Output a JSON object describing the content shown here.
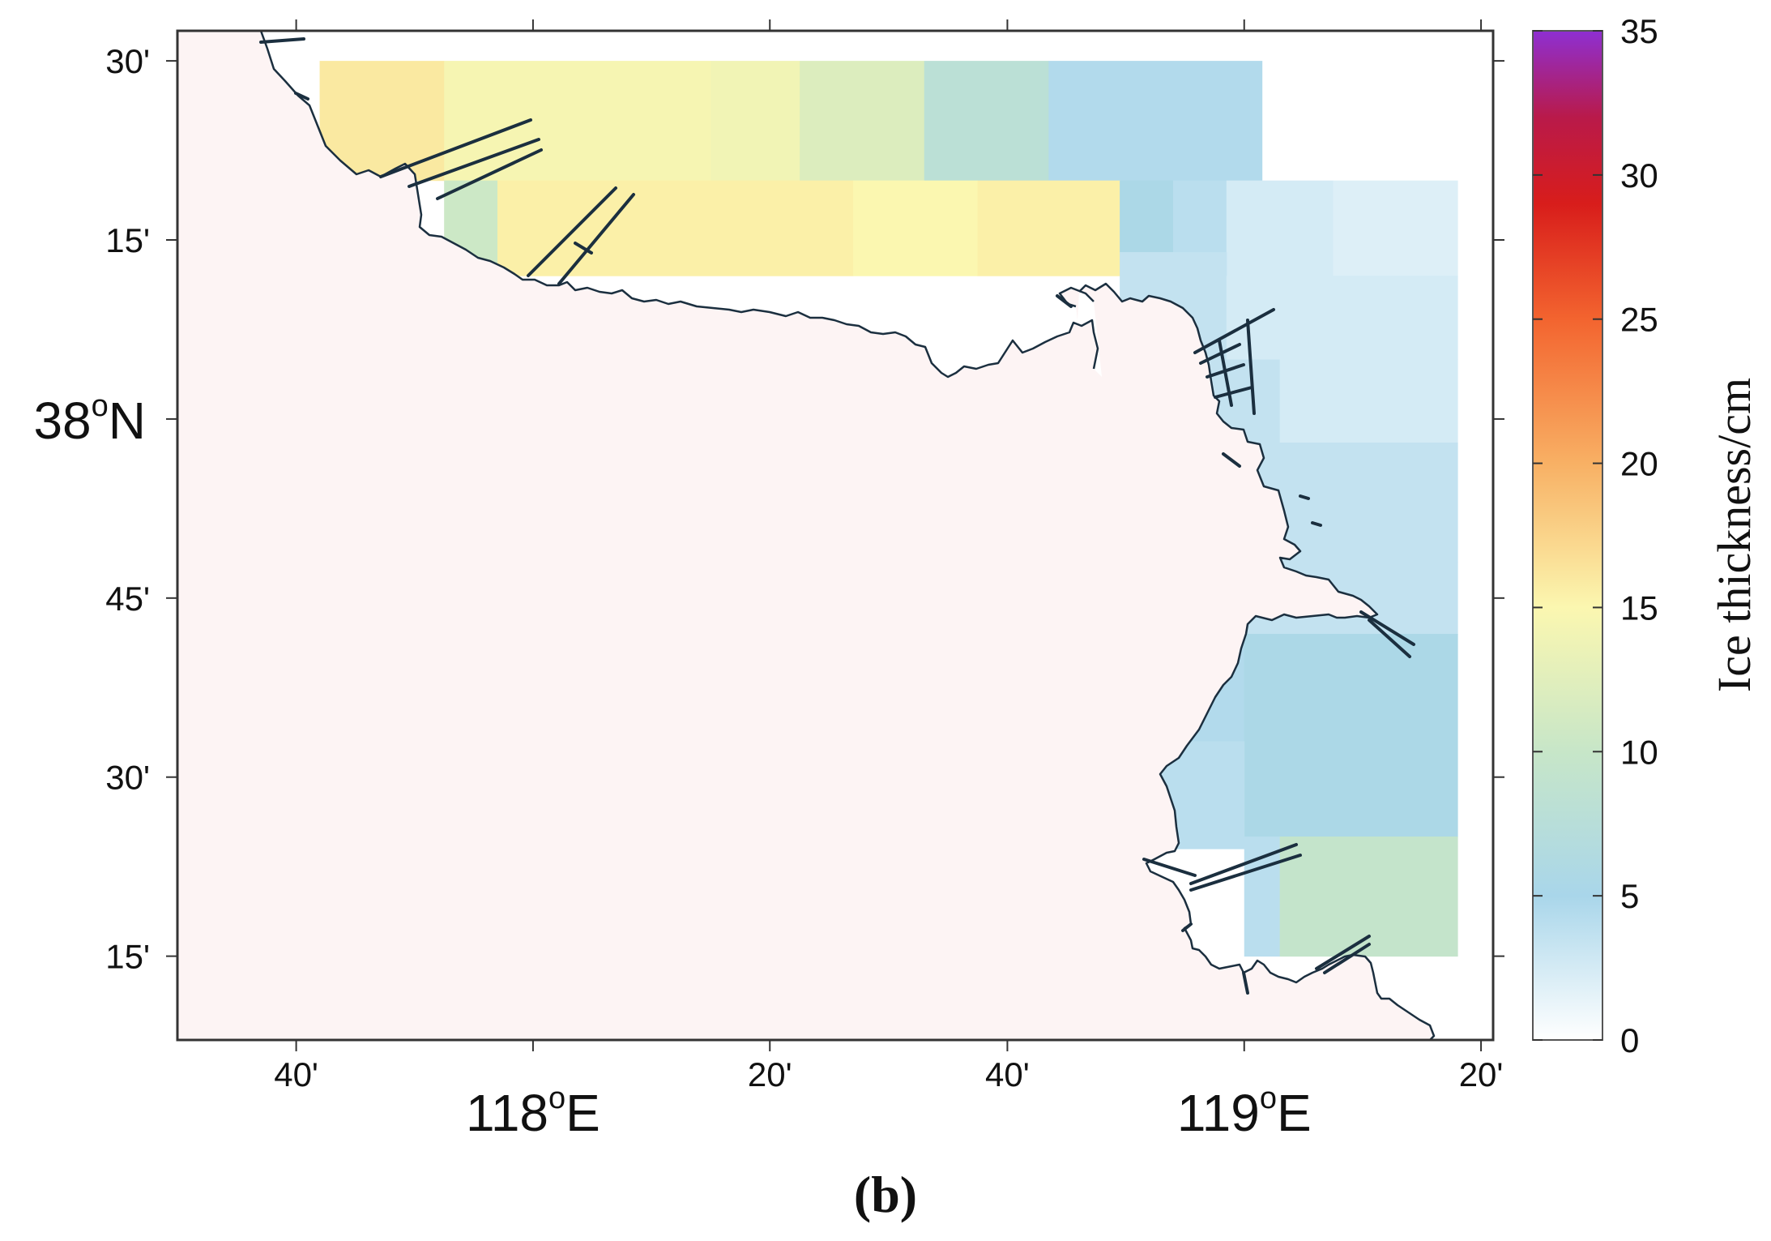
{
  "map": {
    "colors": {
      "land": "#fdf4f4",
      "coast": "#1b2f3f",
      "frame": "#333333"
    },
    "ice_cells_note_units": "cm",
    "ice_cells": [
      {
        "lon0": 117.7,
        "lon1": 117.875,
        "lat0": 38.333,
        "lat1": 38.5,
        "thickness": 16
      },
      {
        "lon0": 117.875,
        "lon1": 118.25,
        "lat0": 38.333,
        "lat1": 38.5,
        "thickness": 14.5
      },
      {
        "lon0": 118.25,
        "lon1": 118.375,
        "lat0": 38.333,
        "lat1": 38.5,
        "thickness": 14
      },
      {
        "lon0": 118.375,
        "lon1": 118.55,
        "lat0": 38.333,
        "lat1": 38.5,
        "thickness": 12
      },
      {
        "lon0": 118.55,
        "lon1": 118.725,
        "lat0": 38.333,
        "lat1": 38.5,
        "thickness": 8
      },
      {
        "lon0": 118.725,
        "lon1": 119.025,
        "lat0": 38.333,
        "lat1": 38.5,
        "thickness": 4.5
      },
      {
        "lon0": 117.875,
        "lon1": 117.95,
        "lat0": 38.2,
        "lat1": 38.333,
        "thickness": 10.5
      },
      {
        "lon0": 117.95,
        "lon1": 118.45,
        "lat0": 38.2,
        "lat1": 38.333,
        "thickness": 15.5
      },
      {
        "lon0": 118.45,
        "lon1": 118.625,
        "lat0": 38.2,
        "lat1": 38.333,
        "thickness": 15
      },
      {
        "lon0": 118.625,
        "lon1": 118.825,
        "lat0": 38.2,
        "lat1": 38.333,
        "thickness": 15.5
      },
      {
        "lon0": 118.825,
        "lon1": 118.9,
        "lat0": 38.233,
        "lat1": 38.333,
        "thickness": 5.5
      },
      {
        "lon0": 118.9,
        "lon1": 118.975,
        "lat0": 38.233,
        "lat1": 38.333,
        "thickness": 4
      },
      {
        "lon0": 118.975,
        "lon1": 119.125,
        "lat0": 38.2,
        "lat1": 38.333,
        "thickness": 2.5
      },
      {
        "lon0": 119.125,
        "lon1": 119.3,
        "lat0": 38.2,
        "lat1": 38.333,
        "thickness": 2
      },
      {
        "lon0": 118.825,
        "lon1": 118.975,
        "lat0": 38.083,
        "lat1": 38.233,
        "thickness": 3.5
      },
      {
        "lon0": 118.975,
        "lon1": 119.3,
        "lat0": 38.083,
        "lat1": 38.2,
        "thickness": 2.5
      },
      {
        "lon0": 118.825,
        "lon1": 119.05,
        "lat0": 37.967,
        "lat1": 38.083,
        "thickness": 3.5
      },
      {
        "lon0": 119.05,
        "lon1": 119.3,
        "lat0": 37.967,
        "lat1": 38.083,
        "thickness": 2.5
      },
      {
        "lon0": 118.975,
        "lon1": 119.3,
        "lat0": 37.8,
        "lat1": 37.967,
        "thickness": 3.5
      },
      {
        "lon0": 118.825,
        "lon1": 119.0,
        "lat0": 37.7,
        "lat1": 37.8,
        "thickness": 2.5
      },
      {
        "lon0": 119.0,
        "lon1": 119.3,
        "lat0": 37.7,
        "lat1": 37.8,
        "thickness": 3.5
      },
      {
        "lon0": 118.825,
        "lon1": 119.0,
        "lat0": 37.55,
        "lat1": 37.7,
        "thickness": 4.5
      },
      {
        "lon0": 119.0,
        "lon1": 119.3,
        "lat0": 37.417,
        "lat1": 37.7,
        "thickness": 5.5
      },
      {
        "lon0": 118.825,
        "lon1": 119.0,
        "lat0": 37.4,
        "lat1": 37.55,
        "thickness": 4
      },
      {
        "lon0": 119.0,
        "lon1": 119.05,
        "lat0": 37.25,
        "lat1": 37.417,
        "thickness": 4
      },
      {
        "lon0": 119.05,
        "lon1": 119.3,
        "lat0": 37.25,
        "lat1": 37.417,
        "thickness": 9.5
      }
    ],
    "x_ticks": [
      {
        "lon": 117.667,
        "label": "40'",
        "major": false
      },
      {
        "lon": 118.0,
        "label": "118",
        "suffix": "E",
        "major": true
      },
      {
        "lon": 118.333,
        "label": "20'",
        "major": false
      },
      {
        "lon": 118.667,
        "label": "40'",
        "major": false
      },
      {
        "lon": 119.0,
        "label": "119",
        "suffix": "E",
        "major": true
      },
      {
        "lon": 119.333,
        "label": "20'",
        "major": false
      }
    ],
    "y_ticks": [
      {
        "lat": 38.5,
        "label": "30'",
        "major": false
      },
      {
        "lat": 38.25,
        "label": "15'",
        "major": false
      },
      {
        "lat": 38.0,
        "label": "38",
        "suffix": "N",
        "major": true
      },
      {
        "lat": 37.75,
        "label": "45'",
        "major": false
      },
      {
        "lat": 37.5,
        "label": "30'",
        "major": false
      },
      {
        "lat": 37.25,
        "label": "15'",
        "major": false
      }
    ],
    "extent": {
      "lon": [
        117.5,
        119.35
      ],
      "lat": [
        37.133,
        38.542
      ]
    }
  },
  "colorbar": {
    "label": "Ice thickness/cm",
    "min": 0,
    "max": 35,
    "tick_labels": [
      "0",
      "5",
      "10",
      "15",
      "20",
      "25",
      "30",
      "35"
    ],
    "stops": [
      {
        "v": 0,
        "c": "#ffffff"
      },
      {
        "v": 5,
        "c": "#a9d6ea"
      },
      {
        "v": 10,
        "c": "#c7e6c8"
      },
      {
        "v": 15,
        "c": "#fbf7b0"
      },
      {
        "v": 20,
        "c": "#f8b064"
      },
      {
        "v": 25,
        "c": "#f3642f"
      },
      {
        "v": 29,
        "c": "#d81d1b"
      },
      {
        "v": 32,
        "c": "#b91a4a"
      },
      {
        "v": 35,
        "c": "#8e2fd2"
      }
    ]
  },
  "panel_label": "(b)"
}
